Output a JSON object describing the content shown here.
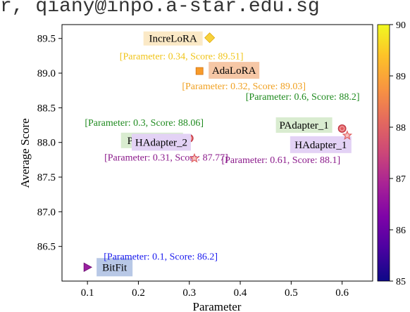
{
  "header_url": "r, qiany@inpo.a-star.edu.sg",
  "chart_data": {
    "type": "scatter",
    "xlabel": "Parameter",
    "ylabel": "Average Score",
    "xlim": [
      0.05,
      0.66
    ],
    "ylim": [
      86.0,
      89.7
    ],
    "xticks": [
      "0.1",
      "0.2",
      "0.3",
      "0.4",
      "0.5",
      "0.6"
    ],
    "yticks": [
      "86.5",
      "87.0",
      "87.5",
      "88.0",
      "88.5",
      "89.0",
      "89.5"
    ],
    "colorbar": {
      "min": 85,
      "max": 90,
      "ticks": [
        "85",
        "86",
        "87",
        "88",
        "89",
        "90"
      ],
      "colormap": "plasma"
    },
    "points": [
      {
        "name": "IncreLoRA",
        "x": 0.34,
        "y": 89.51,
        "marker": "diamond",
        "color": "#f7d13d",
        "annotation": "[Parameter: 0.34, Score: 89.51]",
        "annotation_color": "#f0c419",
        "label_bg": "#fbe9c6"
      },
      {
        "name": "AdaLoRA",
        "x": 0.32,
        "y": 89.03,
        "marker": "square",
        "color": "#f89b2a",
        "annotation": "[Parameter: 0.32, Score: 89.03]",
        "annotation_color": "#f0a020",
        "label_bg": "#f6c7a6"
      },
      {
        "name": "PAdapter_1",
        "x": 0.6,
        "y": 88.2,
        "marker": "circle",
        "color": "#e05a5f",
        "annotation": "[Parameter: 0.6, Score: 88.2]",
        "annotation_color": "#1e8a1e",
        "label_bg": "#d9ecd0"
      },
      {
        "name": "HAdapter_1",
        "x": 0.61,
        "y": 88.1,
        "marker": "star",
        "color": "#e06060",
        "annotation": "[Parameter: 0.61, Score: 88.1]",
        "annotation_color": "#8b1a8b",
        "label_bg": "#e3d2f5"
      },
      {
        "name": "PAdapter_2",
        "x": 0.3,
        "y": 88.06,
        "marker": "circle",
        "color": "#e05a5f",
        "annotation": "[Parameter: 0.3, Score: 88.06]",
        "annotation_color": "#1e8a1e",
        "label_bg": "#d9ecd0"
      },
      {
        "name": "HAdapter_2",
        "x": 0.31,
        "y": 87.77,
        "marker": "star",
        "color": "#e06060",
        "annotation": "[Parameter: 0.31, Score: 87.77]",
        "annotation_color": "#8b1a8b",
        "label_bg": "#e3d2f5"
      },
      {
        "name": "BitFit",
        "x": 0.1,
        "y": 86.2,
        "marker": "triangle",
        "color": "#9a20a0",
        "annotation": "[Parameter: 0.1, Score: 86.2]",
        "annotation_color": "#1a1aee",
        "label_bg": "#b8c8e6"
      }
    ]
  }
}
